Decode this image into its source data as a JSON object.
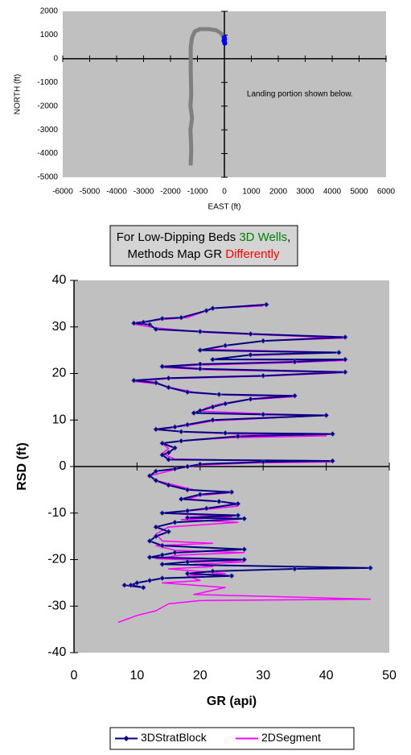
{
  "chart_data": [
    {
      "type": "line",
      "xlabel": "EAST (ft)",
      "ylabel": "NORTH (ft)",
      "xlim": [
        -6000,
        6000
      ],
      "xticks": [
        -6000,
        -5000,
        -4000,
        -3000,
        -2000,
        -1000,
        0,
        1000,
        2000,
        3000,
        4000,
        5000,
        6000
      ],
      "ylim": [
        -5000,
        2000
      ],
      "yticks": [
        2000,
        1000,
        0,
        -1000,
        -2000,
        -3000,
        -4000,
        -5000
      ],
      "background": "#c0c0c0",
      "grid": false,
      "annotation": {
        "text": "Landing portion shown below.",
        "x": 2800,
        "y": -1500,
        "color": "#0000ff"
      },
      "series": [
        {
          "color": "#808080",
          "line": true,
          "marker": null,
          "x": [
            0,
            -100,
            -300,
            -600,
            -900,
            -1100,
            -1200,
            -1250,
            -1250,
            -1230,
            -1260,
            -1200,
            -1260,
            -1230,
            -1250
          ],
          "values": [
            800,
            1050,
            1200,
            1250,
            1250,
            1150,
            900,
            500,
            -500,
            -1500,
            -2000,
            -2500,
            -3000,
            -3800,
            -4500
          ]
        },
        {
          "color": "#0000ff",
          "line": false,
          "marker": "circle",
          "x": [
            0,
            10,
            -20,
            5,
            15
          ],
          "values": [
            900,
            820,
            760,
            700,
            650
          ]
        }
      ]
    },
    {
      "type": "line",
      "xlabel": "GR (api)",
      "ylabel": "RSD (ft)",
      "xlim": [
        0,
        50
      ],
      "xticks": [
        0,
        10,
        20,
        30,
        40,
        50
      ],
      "ylim": [
        -40,
        40
      ],
      "yticks": [
        40,
        30,
        20,
        10,
        0,
        -10,
        -20,
        -30,
        -40
      ],
      "background": "#c0c0c0",
      "grid": false,
      "legend": "bottom",
      "annotation": {
        "lines": [
          [
            {
              "text": "For Low-Dipping Beds ",
              "color": "#000000"
            },
            {
              "text": "3D Wells",
              "color": "#008000"
            },
            {
              "text": ",",
              "color": "#000000"
            }
          ],
          [
            {
              "text": "Methods Map GR ",
              "color": "#000000"
            },
            {
              "text": "Differently",
              "color": "#ff0000"
            }
          ]
        ]
      },
      "series": [
        {
          "name": "2DSegment",
          "color": "#ff00ff",
          "line": true,
          "marker": null,
          "x": [
            30,
            22,
            18,
            14,
            10,
            9.5,
            13,
            21,
            30,
            43,
            30,
            25,
            21,
            42,
            27,
            22,
            43,
            34,
            20,
            14,
            21,
            43,
            30,
            15,
            9.5,
            13,
            16,
            19,
            24,
            35,
            27,
            23,
            21,
            20,
            31,
            40,
            22,
            18,
            13,
            18,
            26,
            40,
            25,
            16,
            14,
            15,
            14,
            16,
            41,
            29,
            20,
            17,
            15,
            12,
            13,
            16,
            19,
            25,
            20,
            18,
            24,
            26,
            21,
            14,
            25,
            17,
            26,
            15,
            13,
            14,
            22,
            13,
            16,
            27,
            17,
            13,
            27,
            19,
            22,
            15,
            24,
            18,
            20,
            14,
            24,
            19,
            47,
            20,
            15,
            13,
            10,
            8,
            7
          ],
          "values": [
            34.5,
            34,
            32,
            31.6,
            31,
            30.6,
            29.8,
            28.8,
            28.3,
            27.6,
            27,
            26.2,
            25.2,
            24.5,
            23.8,
            23,
            22.8,
            22.3,
            21.8,
            21.3,
            20.8,
            20.2,
            19.4,
            18.9,
            18.3,
            17.8,
            16.8,
            16,
            15.4,
            15,
            14.3,
            13.4,
            12.6,
            11.9,
            11.3,
            11,
            9.8,
            8.8,
            7.9,
            7.4,
            7,
            6.6,
            6.2,
            5.4,
            4.9,
            3.9,
            2.8,
            1.6,
            1,
            0.8,
            0.3,
            -0.3,
            -1,
            -2,
            -3,
            -4,
            -5,
            -5.6,
            -6.2,
            -7,
            -7.6,
            -8.5,
            -9.2,
            -10,
            -10.8,
            -11.4,
            -12,
            -13,
            -14.5,
            -16,
            -16.5,
            -17,
            -18,
            -18.5,
            -19,
            -19.8,
            -20.5,
            -21,
            -21.5,
            -22,
            -23,
            -23.5,
            -24.5,
            -25,
            -26,
            -27.5,
            -28.5,
            -28.8,
            -29.5,
            -31,
            -32,
            -33,
            -33.5
          ]
        },
        {
          "name": "3DStratBlock",
          "color": "#000080",
          "line": true,
          "marker": "diamond",
          "x": [
            30.5,
            22,
            21,
            17,
            14,
            11,
            9.5,
            12,
            13,
            20,
            28,
            43,
            30,
            24,
            20,
            42,
            28,
            22,
            43,
            35,
            20,
            14,
            20,
            43,
            30,
            15,
            9.5,
            13,
            15,
            18,
            23,
            35,
            28,
            24,
            22,
            20,
            19,
            30,
            40,
            22,
            18,
            16,
            13,
            17,
            24,
            41,
            26,
            17,
            14,
            16,
            15,
            14,
            15,
            41,
            30,
            20,
            18,
            16,
            13,
            12,
            13,
            15,
            18,
            25,
            20,
            17,
            23,
            26,
            21,
            18,
            14,
            26,
            18,
            27,
            16,
            13,
            15,
            13,
            12,
            14,
            27,
            16,
            14,
            12,
            27,
            18,
            14,
            47,
            35,
            22,
            18,
            25,
            14,
            12,
            10,
            9,
            11,
            8
          ],
          "values": [
            34.8,
            34,
            33.5,
            32,
            31.8,
            31,
            30.8,
            30.5,
            29.5,
            29,
            28.5,
            27.8,
            27,
            26,
            25,
            24.5,
            24,
            23,
            23,
            22.5,
            22,
            21.5,
            21,
            20.3,
            19.5,
            19,
            18.5,
            18,
            17,
            16,
            15.5,
            15.2,
            14.5,
            13.5,
            12.8,
            12,
            11.5,
            11.2,
            11,
            10,
            9,
            8.5,
            8,
            7.5,
            7.2,
            7,
            6.5,
            5.5,
            5,
            4,
            3,
            2.5,
            1.5,
            1.2,
            1,
            0.5,
            0,
            -0.5,
            -1,
            -2,
            -3,
            -4,
            -5,
            -5.5,
            -6,
            -7,
            -7.5,
            -8,
            -9,
            -9.5,
            -10,
            -10.5,
            -11,
            -11.2,
            -12,
            -13,
            -14,
            -15,
            -16,
            -17,
            -17.8,
            -18.5,
            -19,
            -19.5,
            -20,
            -20.5,
            -21,
            -21.8,
            -22,
            -22.5,
            -23,
            -23.5,
            -24,
            -24.5,
            -25,
            -25.5,
            -26,
            -25.5
          ]
        }
      ]
    }
  ]
}
